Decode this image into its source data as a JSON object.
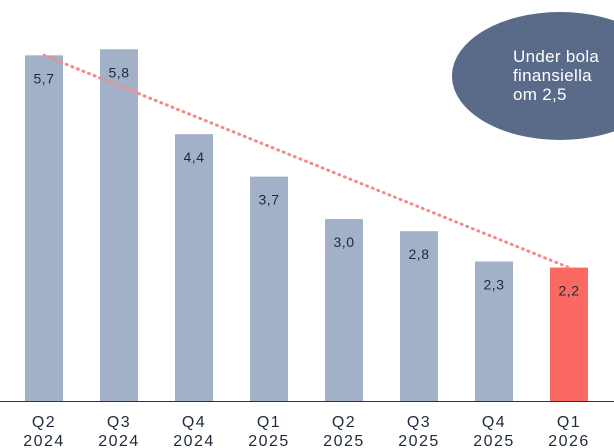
{
  "chart_data": {
    "type": "bar",
    "categories": [
      {
        "quarter": "Q2",
        "year": "2024"
      },
      {
        "quarter": "Q3",
        "year": "2024"
      },
      {
        "quarter": "Q4",
        "year": "2024"
      },
      {
        "quarter": "Q1",
        "year": "2025"
      },
      {
        "quarter": "Q2",
        "year": "2025"
      },
      {
        "quarter": "Q3",
        "year": "2025"
      },
      {
        "quarter": "Q4",
        "year": "2025"
      },
      {
        "quarter": "Q1",
        "year": "2026"
      }
    ],
    "values": [
      5.7,
      5.8,
      4.4,
      3.7,
      3.0,
      2.8,
      2.3,
      2.2
    ],
    "value_labels": [
      "5,7",
      "5,8",
      "4,4",
      "3,7",
      "3,0",
      "2,8",
      "2,3",
      "2,2"
    ],
    "ylim": [
      0,
      6.2
    ],
    "trendline": {
      "style": "dotted",
      "color": "#f28b8b"
    },
    "grid": false,
    "colors": {
      "bar": "#a3b1c8",
      "highlight_bar": "#fa6a63",
      "axis": "#333333",
      "callout": "#5a6b8a"
    },
    "highlight_index": 7,
    "callout": {
      "lines": [
        "Under bola",
        "finansiella",
        "om 2,5"
      ]
    }
  }
}
